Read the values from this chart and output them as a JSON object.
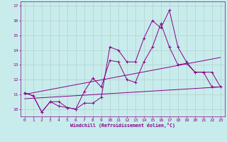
{
  "xlabel": "Windchill (Refroidissement éolien,°C)",
  "ylabel": "",
  "background_color": "#c8ecec",
  "line_color": "#880088",
  "grid_color": "#b0c8c8",
  "xlim": [
    -0.5,
    23.5
  ],
  "ylim": [
    9.5,
    17.3
  ],
  "yticks": [
    10,
    11,
    12,
    13,
    14,
    15,
    16,
    17
  ],
  "xticks": [
    0,
    1,
    2,
    3,
    4,
    5,
    6,
    7,
    8,
    9,
    10,
    11,
    12,
    13,
    14,
    15,
    16,
    17,
    18,
    19,
    20,
    21,
    22,
    23
  ],
  "series": [
    {
      "x": [
        0,
        1,
        2,
        3,
        4,
        5,
        6,
        7,
        8,
        9,
        10,
        11,
        12,
        13,
        14,
        15,
        16,
        17,
        18,
        19,
        20,
        21,
        22,
        23
      ],
      "y": [
        11.1,
        10.9,
        9.8,
        10.5,
        10.5,
        10.1,
        10.0,
        10.4,
        10.4,
        10.8,
        14.2,
        14.0,
        13.2,
        13.2,
        14.8,
        16.0,
        15.5,
        16.7,
        14.2,
        13.2,
        12.5,
        12.5,
        12.5,
        11.5
      ],
      "marker": true
    },
    {
      "x": [
        0,
        1,
        2,
        3,
        4,
        5,
        6,
        7,
        8,
        9,
        10,
        11,
        12,
        13,
        14,
        15,
        16,
        17,
        18,
        19,
        20,
        21,
        22,
        23
      ],
      "y": [
        11.1,
        10.9,
        9.8,
        10.5,
        10.2,
        10.1,
        10.0,
        11.2,
        12.1,
        11.5,
        13.3,
        13.2,
        12.0,
        11.8,
        13.2,
        14.2,
        15.8,
        14.2,
        13.0,
        13.1,
        12.5,
        12.5,
        11.5,
        11.5
      ],
      "marker": true
    },
    {
      "x": [
        0,
        23
      ],
      "y": [
        11.0,
        13.5
      ],
      "marker": false
    },
    {
      "x": [
        0,
        23
      ],
      "y": [
        10.7,
        11.5
      ],
      "marker": false
    }
  ]
}
